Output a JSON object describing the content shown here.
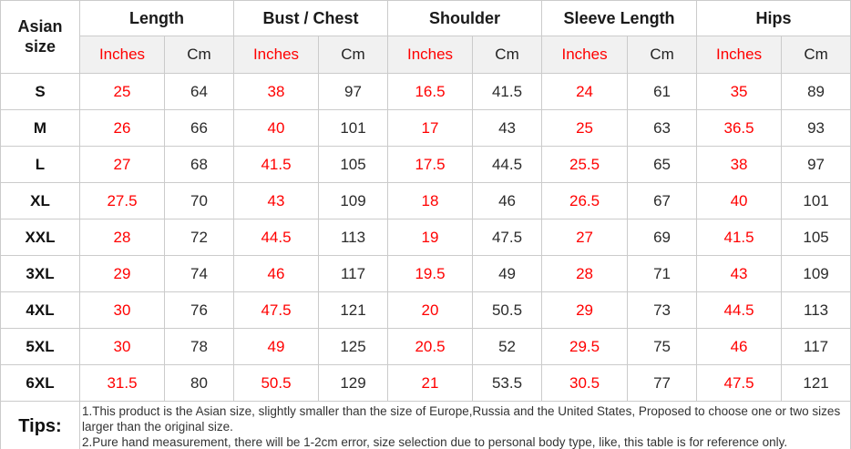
{
  "table": {
    "corner_header": "Asian size",
    "groups": [
      {
        "label": "Length"
      },
      {
        "label": "Bust / Chest"
      },
      {
        "label": "Shoulder"
      },
      {
        "label": "Sleeve Length"
      },
      {
        "label": "Hips"
      }
    ],
    "unit_headers": {
      "inches": "Inches",
      "cm": "Cm"
    },
    "rows": [
      {
        "size": "S",
        "values": [
          "25",
          "64",
          "38",
          "97",
          "16.5",
          "41.5",
          "24",
          "61",
          "35",
          "89"
        ]
      },
      {
        "size": "M",
        "values": [
          "26",
          "66",
          "40",
          "101",
          "17",
          "43",
          "25",
          "63",
          "36.5",
          "93"
        ]
      },
      {
        "size": "L",
        "values": [
          "27",
          "68",
          "41.5",
          "105",
          "17.5",
          "44.5",
          "25.5",
          "65",
          "38",
          "97"
        ]
      },
      {
        "size": "XL",
        "values": [
          "27.5",
          "70",
          "43",
          "109",
          "18",
          "46",
          "26.5",
          "67",
          "40",
          "101"
        ]
      },
      {
        "size": "XXL",
        "values": [
          "28",
          "72",
          "44.5",
          "113",
          "19",
          "47.5",
          "27",
          "69",
          "41.5",
          "105"
        ]
      },
      {
        "size": "3XL",
        "values": [
          "29",
          "74",
          "46",
          "117",
          "19.5",
          "49",
          "28",
          "71",
          "43",
          "109"
        ]
      },
      {
        "size": "4XL",
        "values": [
          "30",
          "76",
          "47.5",
          "121",
          "20",
          "50.5",
          "29",
          "73",
          "44.5",
          "113"
        ]
      },
      {
        "size": "5XL",
        "values": [
          "30",
          "78",
          "49",
          "125",
          "20.5",
          "52",
          "29.5",
          "75",
          "46",
          "117"
        ]
      },
      {
        "size": "6XL",
        "values": [
          "31.5",
          "80",
          "50.5",
          "129",
          "21",
          "53.5",
          "30.5",
          "77",
          "47.5",
          "121"
        ]
      }
    ],
    "tips": {
      "label": "Tips:",
      "lines": [
        "1.This product is the Asian size, slightly smaller than the size of Europe,Russia and the United States, Proposed to choose one or two sizes larger than the original size.",
        "2.Pure hand measurement, there will be 1-2cm error, size selection due to personal body type, like, this table is for reference only."
      ]
    },
    "colors": {
      "inches_text": "#ff0000",
      "cm_text": "#2b2b2b",
      "header_text": "#1a1a1a",
      "border": "#cbcbcb",
      "unit_row_bg": "#f1f1f1"
    }
  }
}
